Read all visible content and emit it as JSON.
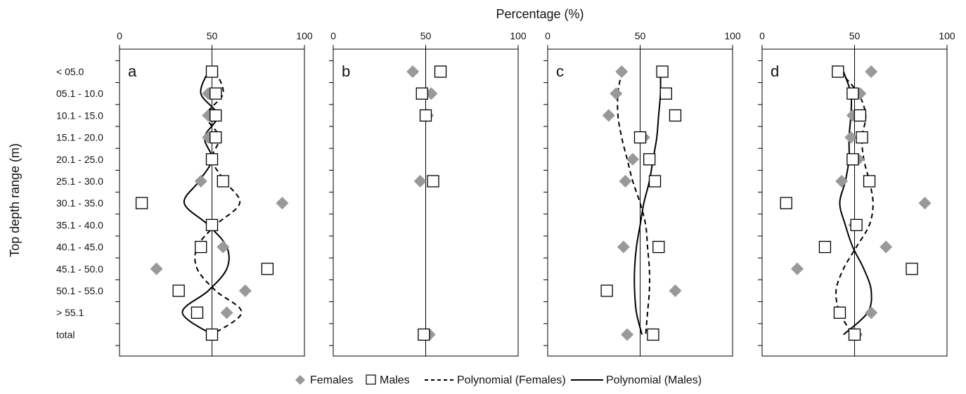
{
  "figure": {
    "xlabel": "Percentage (%)",
    "ylabel": "Top depth range (m)",
    "legend": {
      "placement": "bottom",
      "females": "Females",
      "males": "Males",
      "poly_females": "Polynomial (Females)",
      "poly_males": "Polynomial (Males)"
    },
    "colors": {
      "females": "#999999",
      "males": "#ffffff",
      "male_stroke": "#000000",
      "poly": "#000000"
    },
    "icons": {
      "females": "diamond-marker-icon",
      "males": "square-marker-icon"
    }
  },
  "chart_data": [
    {
      "type": "scatter",
      "panel": "a",
      "categories": [
        "< 05.0",
        "05.1 - 10.0",
        "10.1 - 15.0",
        "15.1 - 20.0",
        "20.1 - 25.0",
        "25.1 - 30.0",
        "30.1 - 35.0",
        "35.1 - 40.0",
        "40.1 - 45.0",
        "45.1 - 50.0",
        "50.1 - 55.0",
        "> 55.1",
        "total"
      ],
      "xlim": [
        0,
        100
      ],
      "xticks": [
        0,
        50,
        100
      ],
      "reference_line": 50,
      "series": [
        {
          "name": "Females",
          "marker": "diamond",
          "values": [
            50,
            48,
            48,
            48,
            50,
            44,
            88,
            50,
            56,
            20,
            68,
            58,
            50
          ]
        },
        {
          "name": "Males",
          "marker": "square",
          "values": [
            50,
            52,
            52,
            52,
            50,
            56,
            12,
            50,
            44,
            80,
            32,
            42,
            50
          ]
        }
      ],
      "trend_females": [
        52,
        56,
        47,
        54,
        50,
        57,
        65,
        52,
        42,
        42,
        52,
        66,
        50
      ],
      "trend_males": [
        48,
        44,
        53,
        46,
        50,
        43,
        35,
        48,
        58,
        58,
        48,
        34,
        50
      ]
    },
    {
      "type": "scatter",
      "panel": "b",
      "categories": [
        "< 05.0",
        "05.1 - 10.0",
        "10.1 - 15.0",
        "15.1 - 20.0",
        "20.1 - 25.0",
        "25.1 - 30.0",
        "30.1 - 35.0",
        "35.1 - 40.0",
        "40.1 - 45.0",
        "45.1 - 50.0",
        "50.1 - 55.0",
        "> 55.1",
        "total"
      ],
      "xlim": [
        0,
        100
      ],
      "xticks": [
        0,
        50,
        100
      ],
      "reference_line": 50,
      "series": [
        {
          "name": "Females",
          "marker": "diamond",
          "values": [
            43,
            53,
            51,
            null,
            null,
            47,
            null,
            null,
            null,
            null,
            null,
            null,
            52
          ]
        },
        {
          "name": "Males",
          "marker": "square",
          "values": [
            58,
            48,
            50,
            null,
            null,
            54,
            null,
            null,
            null,
            null,
            null,
            null,
            49
          ]
        }
      ]
    },
    {
      "type": "scatter",
      "panel": "c",
      "categories": [
        "< 05.0",
        "05.1 - 10.0",
        "10.1 - 15.0",
        "15.1 - 20.0",
        "20.1 - 25.0",
        "25.1 - 30.0",
        "30.1 - 35.0",
        "35.1 - 40.0",
        "40.1 - 45.0",
        "45.1 - 50.0",
        "50.1 - 55.0",
        "> 55.1",
        "total"
      ],
      "xlim": [
        0,
        100
      ],
      "xticks": [
        0,
        50,
        100
      ],
      "reference_line": 50,
      "series": [
        {
          "name": "Females",
          "marker": "diamond",
          "values": [
            40,
            37,
            33,
            52,
            46,
            42,
            null,
            null,
            41,
            null,
            69,
            null,
            43
          ]
        },
        {
          "name": "Males",
          "marker": "square",
          "values": [
            62,
            64,
            69,
            50,
            55,
            58,
            null,
            null,
            60,
            null,
            32,
            null,
            57
          ]
        }
      ],
      "trend_females": [
        40,
        38,
        38,
        40,
        43,
        46,
        50,
        53,
        54,
        55,
        55,
        54,
        53
      ],
      "trend_males": [
        61,
        61,
        60,
        59,
        57,
        55,
        52,
        50,
        48,
        47,
        47,
        48,
        51
      ]
    },
    {
      "type": "scatter",
      "panel": "d",
      "categories": [
        "< 05.0",
        "05.1 - 10.0",
        "10.1 - 15.0",
        "15.1 - 20.0",
        "20.1 - 25.0",
        "25.1 - 30.0",
        "30.1 - 35.0",
        "35.1 - 40.0",
        "40.1 - 45.0",
        "45.1 - 50.0",
        "50.1 - 55.0",
        "> 55.1",
        "total"
      ],
      "xlim": [
        0,
        100
      ],
      "xticks": [
        0,
        50,
        100
      ],
      "reference_line": 50,
      "series": [
        {
          "name": "Females",
          "marker": "diamond",
          "values": [
            59,
            53,
            49,
            48,
            52,
            43,
            88,
            50,
            67,
            19,
            null,
            59,
            51
          ]
        },
        {
          "name": "Males",
          "marker": "square",
          "values": [
            41,
            49,
            53,
            54,
            49,
            58,
            13,
            51,
            34,
            81,
            null,
            42,
            50
          ]
        }
      ],
      "trend_females": [
        42,
        52,
        56,
        54,
        55,
        58,
        60,
        58,
        51,
        44,
        40,
        42,
        49
      ],
      "trend_males": [
        44,
        48,
        48,
        47,
        47,
        45,
        42,
        45,
        49,
        55,
        59,
        57,
        44
      ]
    }
  ]
}
